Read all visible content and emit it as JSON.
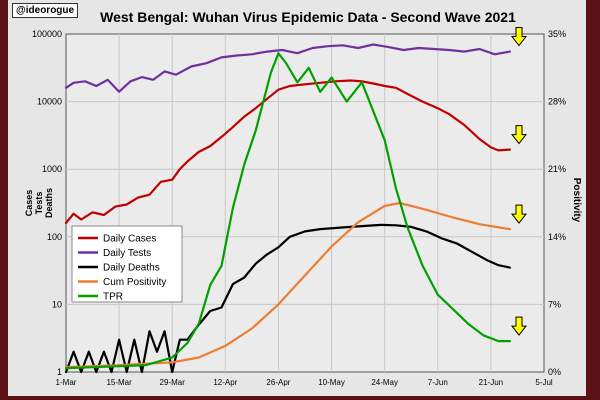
{
  "watermark": "@ideorogue",
  "colors": {
    "background": "#e6e6e6",
    "plot_bg": "#ebebeb",
    "grid": "#c8c8c8",
    "daily_cases": "#c00000",
    "daily_tests": "#7030a0",
    "daily_deaths": "#000000",
    "cum_positivity": "#ed7d31",
    "tpr": "#00a000",
    "arrow_fill": "#ffff00"
  },
  "chart_data": {
    "type": "line",
    "title": "West Bengal: Wuhan Virus Epidemic Data - Second Wave 2021",
    "left_axis": {
      "label_lines": [
        "Cases",
        "Tests",
        "Deaths"
      ],
      "scale": "log",
      "range": [
        1,
        100000
      ],
      "ticks": [
        "1",
        "10",
        "100",
        "1000",
        "10000",
        "100000"
      ]
    },
    "right_axis": {
      "label": "Positivity",
      "range": [
        0,
        35
      ],
      "ticks": [
        "0%",
        "7%",
        "14%",
        "21%",
        "28%",
        "35%"
      ]
    },
    "x_axis": {
      "range": [
        "2021-03-01",
        "2021-07-05"
      ],
      "tick_labels": [
        "1-Mar",
        "15-Mar",
        "29-Mar",
        "12-Apr",
        "26-Apr",
        "10-May",
        "24-May",
        "7-Jun",
        "21-Jun",
        "5-Jul"
      ],
      "tick_dates": [
        "2021-03-01",
        "2021-03-15",
        "2021-03-29",
        "2021-04-12",
        "2021-04-26",
        "2021-05-10",
        "2021-05-24",
        "2021-06-07",
        "2021-06-21",
        "2021-07-05"
      ]
    },
    "grid": true,
    "legend_position": "bottom-left",
    "arrows": [
      "Daily Tests",
      "Daily Cases",
      "Cum Positivity",
      "TPR"
    ],
    "series": [
      {
        "name": "Daily Cases",
        "axis": "left",
        "color": "#c00000",
        "points": [
          [
            "2021-03-01",
            160
          ],
          [
            "2021-03-03",
            220
          ],
          [
            "2021-03-05",
            180
          ],
          [
            "2021-03-08",
            230
          ],
          [
            "2021-03-11",
            210
          ],
          [
            "2021-03-14",
            280
          ],
          [
            "2021-03-17",
            300
          ],
          [
            "2021-03-20",
            380
          ],
          [
            "2021-03-23",
            420
          ],
          [
            "2021-03-26",
            650
          ],
          [
            "2021-03-29",
            700
          ],
          [
            "2021-03-31",
            1000
          ],
          [
            "2021-04-02",
            1300
          ],
          [
            "2021-04-05",
            1800
          ],
          [
            "2021-04-08",
            2200
          ],
          [
            "2021-04-11",
            3000
          ],
          [
            "2021-04-14",
            4200
          ],
          [
            "2021-04-17",
            6000
          ],
          [
            "2021-04-20",
            8000
          ],
          [
            "2021-04-23",
            11000
          ],
          [
            "2021-04-26",
            15000
          ],
          [
            "2021-04-29",
            17000
          ],
          [
            "2021-05-03",
            18000
          ],
          [
            "2021-05-07",
            19000
          ],
          [
            "2021-05-11",
            20000
          ],
          [
            "2021-05-15",
            20500
          ],
          [
            "2021-05-18",
            20000
          ],
          [
            "2021-05-21",
            18500
          ],
          [
            "2021-05-24",
            17000
          ],
          [
            "2021-05-27",
            16000
          ],
          [
            "2021-05-30",
            13000
          ],
          [
            "2021-06-03",
            10000
          ],
          [
            "2021-06-07",
            8000
          ],
          [
            "2021-06-10",
            6500
          ],
          [
            "2021-06-14",
            4500
          ],
          [
            "2021-06-18",
            2800
          ],
          [
            "2021-06-21",
            2100
          ],
          [
            "2021-06-23",
            1900
          ],
          [
            "2021-06-26",
            1950
          ]
        ]
      },
      {
        "name": "Daily Tests",
        "axis": "left",
        "color": "#7030a0",
        "points": [
          [
            "2021-03-01",
            16000
          ],
          [
            "2021-03-03",
            19000
          ],
          [
            "2021-03-06",
            20000
          ],
          [
            "2021-03-09",
            17000
          ],
          [
            "2021-03-12",
            21000
          ],
          [
            "2021-03-15",
            14000
          ],
          [
            "2021-03-18",
            20000
          ],
          [
            "2021-03-21",
            23000
          ],
          [
            "2021-03-24",
            21000
          ],
          [
            "2021-03-27",
            28000
          ],
          [
            "2021-03-30",
            25000
          ],
          [
            "2021-04-03",
            33000
          ],
          [
            "2021-04-07",
            37000
          ],
          [
            "2021-04-11",
            45000
          ],
          [
            "2021-04-15",
            48000
          ],
          [
            "2021-04-19",
            50000
          ],
          [
            "2021-04-23",
            55000
          ],
          [
            "2021-04-27",
            58000
          ],
          [
            "2021-05-01",
            52000
          ],
          [
            "2021-05-05",
            62000
          ],
          [
            "2021-05-09",
            66000
          ],
          [
            "2021-05-13",
            68000
          ],
          [
            "2021-05-17",
            62000
          ],
          [
            "2021-05-21",
            70000
          ],
          [
            "2021-05-25",
            64000
          ],
          [
            "2021-05-29",
            58000
          ],
          [
            "2021-06-02",
            62000
          ],
          [
            "2021-06-06",
            60000
          ],
          [
            "2021-06-10",
            58000
          ],
          [
            "2021-06-14",
            55000
          ],
          [
            "2021-06-18",
            60000
          ],
          [
            "2021-06-22",
            50000
          ],
          [
            "2021-06-26",
            55000
          ]
        ]
      },
      {
        "name": "Daily Deaths",
        "axis": "left",
        "color": "#000000",
        "points": [
          [
            "2021-03-01",
            1
          ],
          [
            "2021-03-03",
            2
          ],
          [
            "2021-03-05",
            1
          ],
          [
            "2021-03-07",
            2
          ],
          [
            "2021-03-09",
            1
          ],
          [
            "2021-03-11",
            2
          ],
          [
            "2021-03-13",
            1
          ],
          [
            "2021-03-15",
            3
          ],
          [
            "2021-03-17",
            1
          ],
          [
            "2021-03-19",
            3
          ],
          [
            "2021-03-21",
            1
          ],
          [
            "2021-03-23",
            4
          ],
          [
            "2021-03-25",
            2
          ],
          [
            "2021-03-27",
            4
          ],
          [
            "2021-03-29",
            1
          ],
          [
            "2021-03-31",
            3
          ],
          [
            "2021-04-02",
            3
          ],
          [
            "2021-04-05",
            5
          ],
          [
            "2021-04-08",
            8
          ],
          [
            "2021-04-11",
            9
          ],
          [
            "2021-04-14",
            20
          ],
          [
            "2021-04-17",
            25
          ],
          [
            "2021-04-20",
            40
          ],
          [
            "2021-04-23",
            55
          ],
          [
            "2021-04-26",
            70
          ],
          [
            "2021-04-29",
            100
          ],
          [
            "2021-05-03",
            120
          ],
          [
            "2021-05-07",
            130
          ],
          [
            "2021-05-11",
            135
          ],
          [
            "2021-05-15",
            140
          ],
          [
            "2021-05-19",
            145
          ],
          [
            "2021-05-23",
            150
          ],
          [
            "2021-05-27",
            148
          ],
          [
            "2021-05-31",
            140
          ],
          [
            "2021-06-04",
            120
          ],
          [
            "2021-06-08",
            95
          ],
          [
            "2021-06-12",
            80
          ],
          [
            "2021-06-16",
            60
          ],
          [
            "2021-06-20",
            45
          ],
          [
            "2021-06-23",
            38
          ],
          [
            "2021-06-26",
            35
          ]
        ]
      },
      {
        "name": "Cum Positivity",
        "axis": "right",
        "color": "#ed7d31",
        "points": [
          [
            "2021-03-01",
            0.5
          ],
          [
            "2021-03-15",
            0.7
          ],
          [
            "2021-03-29",
            1.0
          ],
          [
            "2021-04-05",
            1.5
          ],
          [
            "2021-04-12",
            2.7
          ],
          [
            "2021-04-19",
            4.5
          ],
          [
            "2021-04-26",
            7.0
          ],
          [
            "2021-05-03",
            10.0
          ],
          [
            "2021-05-10",
            13.0
          ],
          [
            "2021-05-17",
            15.5
          ],
          [
            "2021-05-24",
            17.2
          ],
          [
            "2021-05-28",
            17.5
          ],
          [
            "2021-06-04",
            16.8
          ],
          [
            "2021-06-11",
            16.0
          ],
          [
            "2021-06-18",
            15.3
          ],
          [
            "2021-06-26",
            14.8
          ]
        ]
      },
      {
        "name": "TPR",
        "axis": "right",
        "color": "#00a000",
        "points": [
          [
            "2021-03-01",
            0.4
          ],
          [
            "2021-03-08",
            0.5
          ],
          [
            "2021-03-15",
            0.6
          ],
          [
            "2021-03-22",
            0.7
          ],
          [
            "2021-03-29",
            1.5
          ],
          [
            "2021-04-02",
            3.0
          ],
          [
            "2021-04-05",
            5.0
          ],
          [
            "2021-04-08",
            9.0
          ],
          [
            "2021-04-11",
            11.0
          ],
          [
            "2021-04-14",
            17.0
          ],
          [
            "2021-04-17",
            21.5
          ],
          [
            "2021-04-20",
            25.0
          ],
          [
            "2021-04-24",
            31.0
          ],
          [
            "2021-04-26",
            33.0
          ],
          [
            "2021-04-28",
            32.0
          ],
          [
            "2021-05-01",
            30.0
          ],
          [
            "2021-05-04",
            31.5
          ],
          [
            "2021-05-07",
            29.0
          ],
          [
            "2021-05-10",
            30.5
          ],
          [
            "2021-05-14",
            28.0
          ],
          [
            "2021-05-18",
            30.0
          ],
          [
            "2021-05-21",
            27.0
          ],
          [
            "2021-05-24",
            24.0
          ],
          [
            "2021-05-27",
            19.0
          ],
          [
            "2021-05-30",
            15.0
          ],
          [
            "2021-06-03",
            11.0
          ],
          [
            "2021-06-07",
            8.0
          ],
          [
            "2021-06-11",
            6.5
          ],
          [
            "2021-06-15",
            5.0
          ],
          [
            "2021-06-19",
            3.8
          ],
          [
            "2021-06-23",
            3.2
          ],
          [
            "2021-06-26",
            3.2
          ]
        ]
      }
    ]
  }
}
